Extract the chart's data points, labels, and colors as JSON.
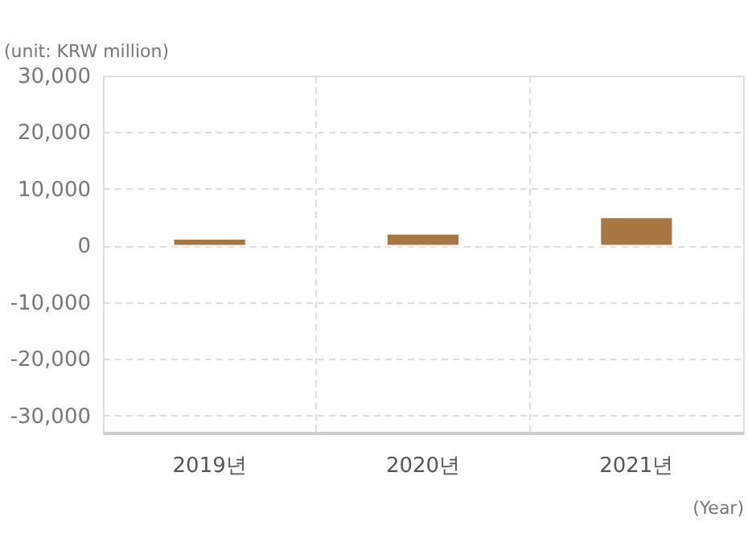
{
  "chart_data": {
    "type": "bar",
    "ylabel": "(unit: KRW million)",
    "xlabel": "(Year)",
    "categories": [
      "2019년",
      "2020년",
      "2021년"
    ],
    "values": [
      1200,
      2100,
      5000
    ],
    "color": "#a87640",
    "ylim": [
      -33000,
      30000
    ],
    "yticks": [
      {
        "value": -30000,
        "label": "-30,000"
      },
      {
        "value": -20000,
        "label": "-20,000"
      },
      {
        "value": -10000,
        "label": "-10,000"
      },
      0,
      {
        "value": 10000,
        "label": "10,000"
      },
      {
        "value": 20000,
        "label": "20,000"
      },
      {
        "value": 30000,
        "label": "30,000"
      }
    ],
    "grid": true
  }
}
